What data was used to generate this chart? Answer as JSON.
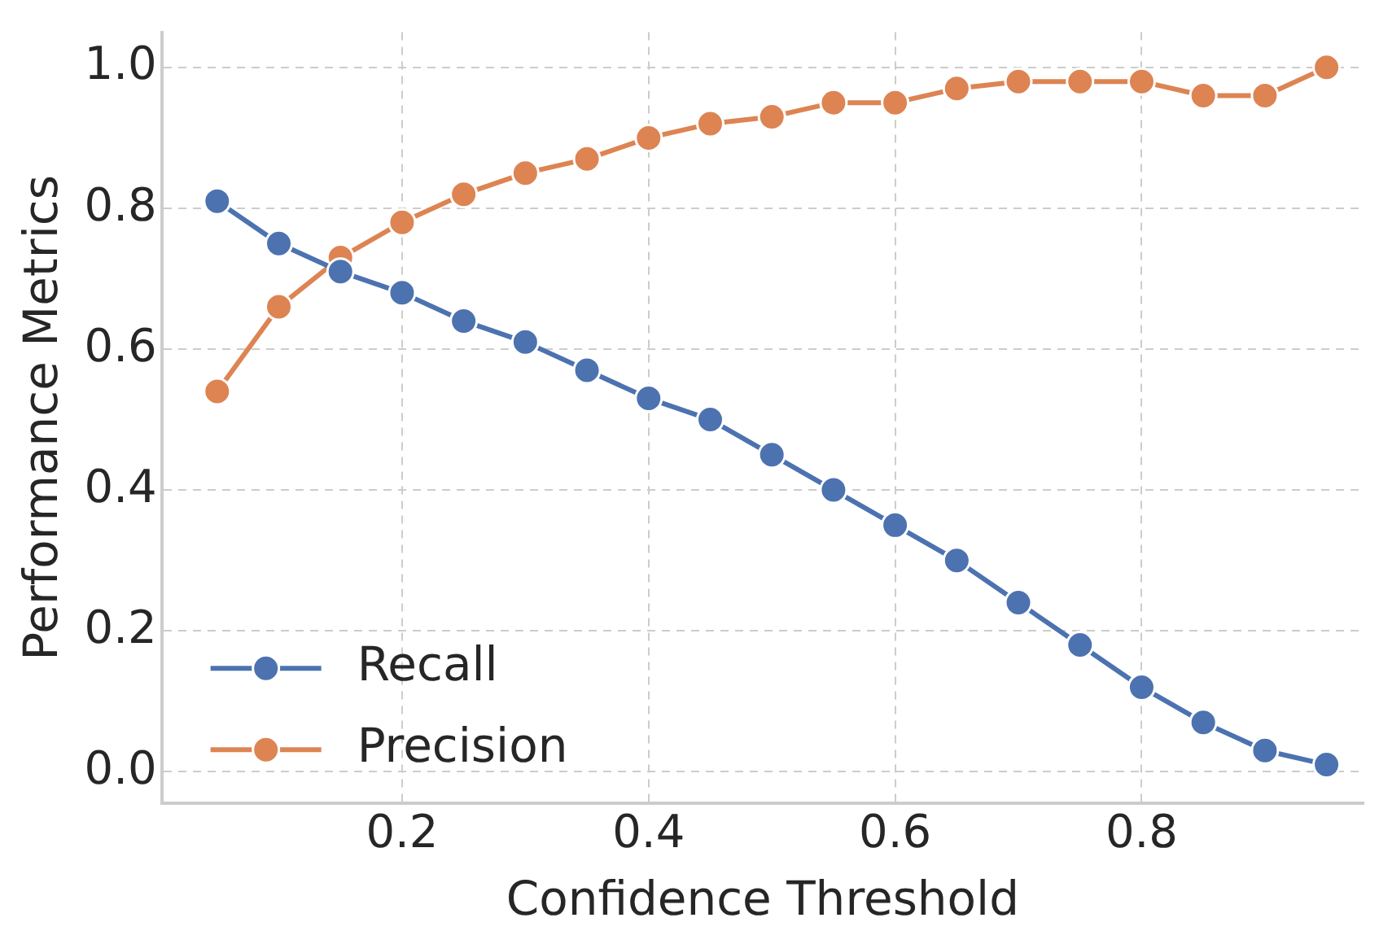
{
  "chart_data": {
    "type": "line",
    "xlabel": "Confidence Threshold",
    "ylabel": "Performance Metrics",
    "x": [
      0.05,
      0.1,
      0.15,
      0.2,
      0.25,
      0.3,
      0.35,
      0.4,
      0.45,
      0.5,
      0.55,
      0.6,
      0.65,
      0.7,
      0.75,
      0.8,
      0.85,
      0.9,
      0.95
    ],
    "series": [
      {
        "name": "Recall",
        "color": "#4c72b0",
        "values": [
          0.81,
          0.75,
          0.71,
          0.68,
          0.64,
          0.61,
          0.57,
          0.53,
          0.5,
          0.45,
          0.4,
          0.35,
          0.3,
          0.24,
          0.18,
          0.12,
          0.07,
          0.03,
          0.01
        ]
      },
      {
        "name": "Precision",
        "color": "#dd8452",
        "values": [
          0.54,
          0.66,
          0.73,
          0.78,
          0.82,
          0.85,
          0.87,
          0.9,
          0.92,
          0.93,
          0.95,
          0.95,
          0.97,
          0.98,
          0.98,
          0.98,
          0.96,
          0.96,
          1.0
        ]
      }
    ],
    "xlim": [
      0.005,
      0.98
    ],
    "xticks": [
      0.2,
      0.4,
      0.6,
      0.8
    ],
    "ylim": [
      -0.045,
      1.05
    ],
    "yticks": [
      {
        "value": 0,
        "label": "0.0"
      },
      0.2,
      0.4,
      0.6,
      0.8,
      {
        "value": 1,
        "label": "1.0"
      }
    ],
    "grid": true,
    "legend": "bottom left",
    "marker": "circle",
    "line_style": "solid"
  }
}
